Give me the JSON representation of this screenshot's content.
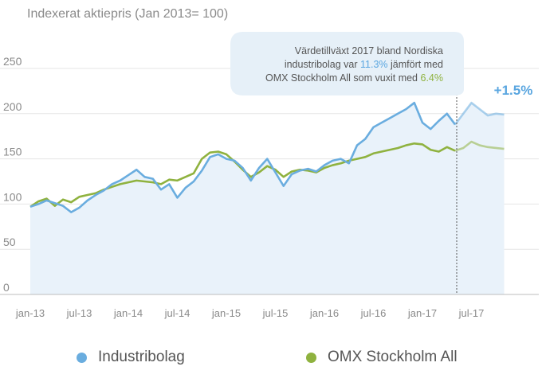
{
  "chart_data": {
    "type": "area",
    "title": "Indexerat aktiepris (Jan 2013= 100)",
    "xlabel": "",
    "ylabel": "",
    "x_ticks": [
      "jan-13",
      "jul-13",
      "jan-14",
      "jul-14",
      "jan-15",
      "jul-15",
      "jan-16",
      "jul-16",
      "jan-17",
      "jul-17"
    ],
    "y_ticks": [
      0,
      50,
      100,
      150,
      200,
      250
    ],
    "ylim": [
      0,
      270
    ],
    "xlim": [
      0,
      58
    ],
    "x_unit": "months since jan-13",
    "grid": true,
    "legend_position": "bottom",
    "projection_start": 52,
    "series": [
      {
        "name": "Industribolag",
        "color": "#6aaddf",
        "x": [
          0,
          1,
          2,
          3,
          4,
          5,
          6,
          7,
          8,
          9,
          10,
          11,
          12,
          13,
          14,
          15,
          16,
          17,
          18,
          19,
          20,
          21,
          22,
          23,
          24,
          25,
          26,
          27,
          28,
          29,
          30,
          31,
          32,
          33,
          34,
          35,
          36,
          37,
          38,
          39,
          40,
          41,
          42,
          43,
          44,
          45,
          46,
          47,
          48,
          49,
          50,
          51,
          52,
          53,
          54,
          55,
          56,
          57,
          58
        ],
        "values": [
          97,
          100,
          104,
          101,
          98,
          91,
          96,
          104,
          110,
          115,
          122,
          126,
          132,
          138,
          130,
          128,
          116,
          122,
          107,
          118,
          125,
          137,
          152,
          155,
          150,
          148,
          140,
          126,
          140,
          150,
          135,
          120,
          133,
          137,
          139,
          136,
          143,
          148,
          150,
          145,
          165,
          172,
          185,
          190,
          195,
          200,
          205,
          212,
          190,
          183,
          192,
          200,
          188,
          200,
          212,
          205,
          198,
          200,
          199
        ],
        "dashed_from": 52
      },
      {
        "name": "OMX Stockholm All",
        "color": "#8fb23f",
        "x": [
          0,
          1,
          2,
          3,
          4,
          5,
          6,
          7,
          8,
          9,
          10,
          11,
          12,
          13,
          14,
          15,
          16,
          17,
          18,
          19,
          20,
          21,
          22,
          23,
          24,
          25,
          26,
          27,
          28,
          29,
          30,
          31,
          32,
          33,
          34,
          35,
          36,
          37,
          38,
          39,
          40,
          41,
          42,
          43,
          44,
          45,
          46,
          47,
          48,
          49,
          50,
          51,
          52,
          53,
          54,
          55,
          56,
          57,
          58
        ],
        "values": [
          97,
          103,
          106,
          98,
          105,
          102,
          108,
          110,
          112,
          116,
          119,
          122,
          124,
          126,
          125,
          124,
          122,
          127,
          126,
          130,
          134,
          150,
          157,
          158,
          155,
          147,
          138,
          130,
          135,
          142,
          138,
          130,
          136,
          138,
          137,
          135,
          140,
          143,
          145,
          148,
          150,
          152,
          156,
          158,
          160,
          162,
          165,
          167,
          166,
          160,
          158,
          163,
          159,
          162,
          169,
          165,
          163,
          162,
          161
        ],
        "dashed_from": 52
      }
    ],
    "annotations": {
      "callout": {
        "line1": "Värdetillväxt 2017 bland Nordiska",
        "line2_pre": "industribolag var ",
        "line2_value": "11.3%",
        "line2_post": " jämfört med",
        "line3_pre": "OMX Stockholm All som vuxit med ",
        "line3_value": "6.4%"
      },
      "projection_label": "+1.5%"
    }
  },
  "colors": {
    "industri": "#6aaddf",
    "omx": "#8fb23f",
    "area_fill": "#e9f2fa",
    "grid": "#e6e6e6",
    "callout_bg": "#e6f0f8",
    "label_blue": "#5aa6e0"
  }
}
